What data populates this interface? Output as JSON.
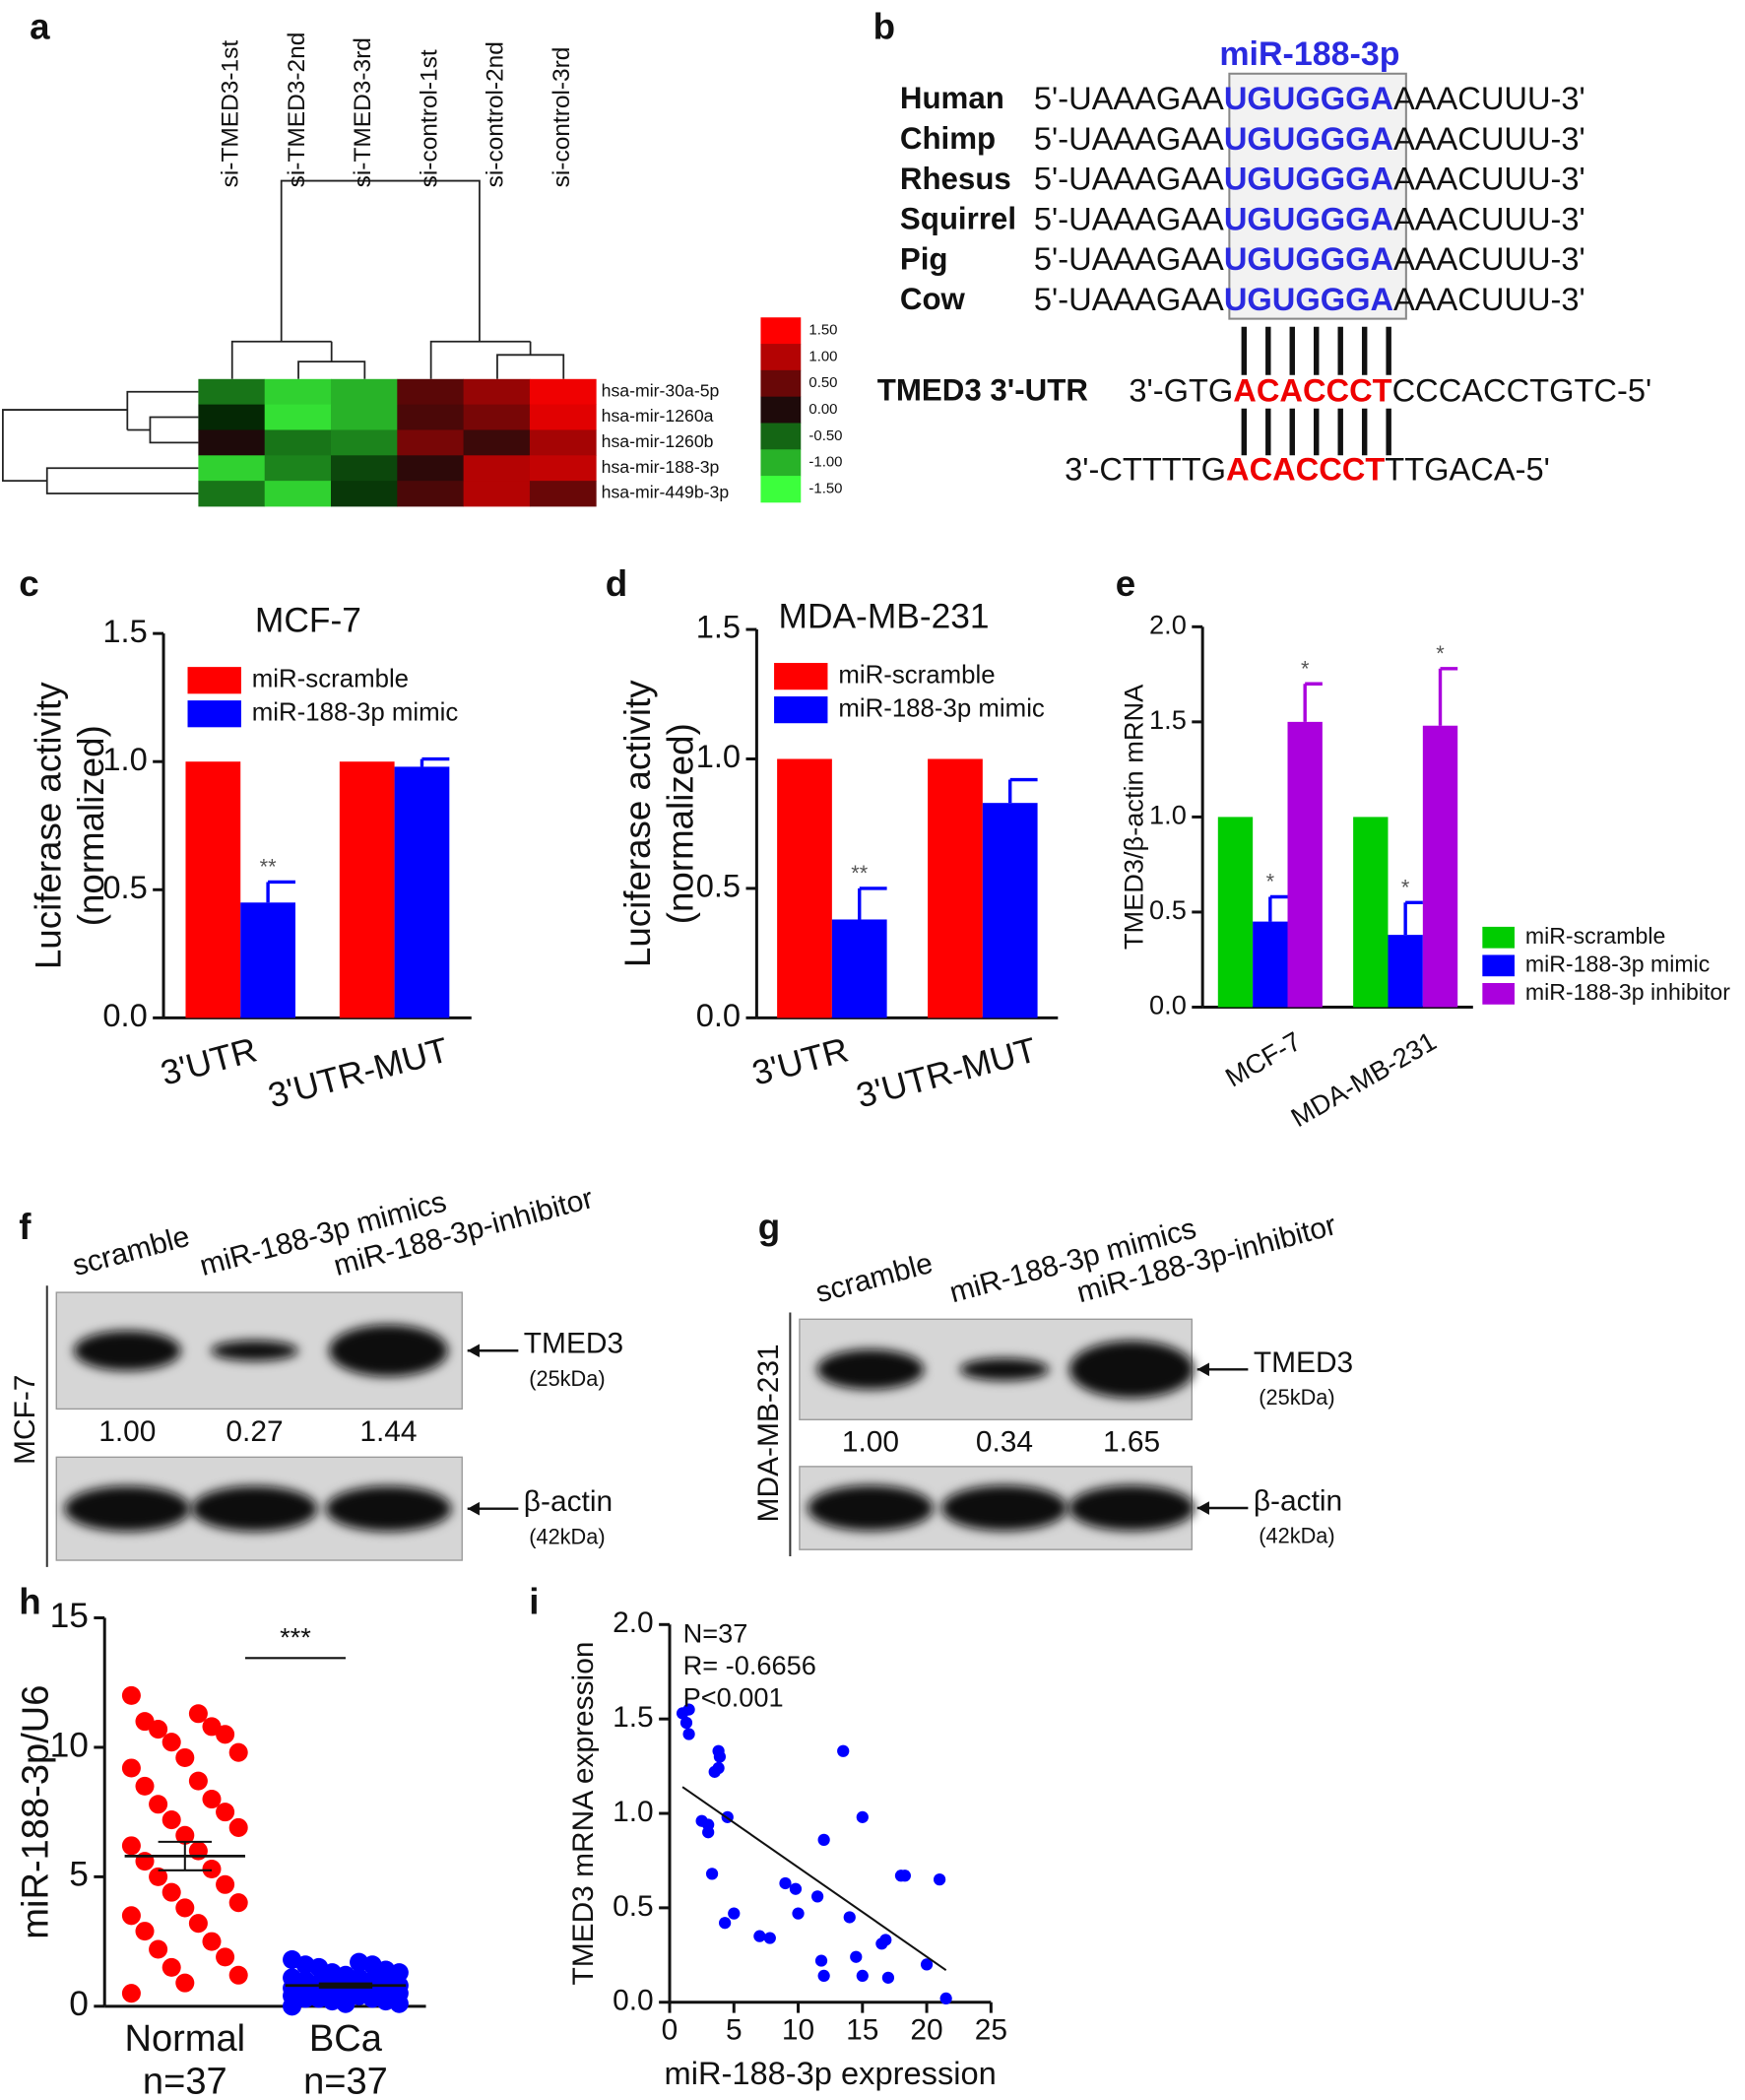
{
  "panel_labels": [
    "a",
    "b",
    "c",
    "d",
    "e",
    "f",
    "g",
    "h",
    "i"
  ],
  "alignment": {
    "mirna": "miR-188-3p",
    "species": [
      {
        "name": "Human",
        "seq": [
          "5'-UAAAGAA",
          "UGUGGGA",
          "AAACUUU-3'"
        ]
      },
      {
        "name": "Chimp",
        "seq": [
          "5'-UAAAGAA",
          "UGUGGGA",
          "AAACUUU-3'"
        ]
      },
      {
        "name": "Rhesus",
        "seq": [
          "5'-UAAAGAA",
          "UGUGGGA",
          "AAACUUU-3'"
        ]
      },
      {
        "name": "Squirrel",
        "seq": [
          "5'-UAAAGAA",
          "UGUGGGA",
          "AAACUUU-3'"
        ]
      },
      {
        "name": "Pig",
        "seq": [
          "5'-UAAAGAA",
          "UGUGGGA",
          "AAACUUU-3'"
        ]
      },
      {
        "name": "Cow",
        "seq": [
          "5'-UAAAGAA",
          "UGUGGGA",
          "AAACUUU-3'"
        ]
      }
    ],
    "targets": [
      {
        "name": "TMED3 3'-UTR",
        "seq": [
          "3'-GTG",
          "ACACCCT",
          "CCCACCTGTC-5'"
        ]
      },
      {
        "seq": [
          "3'-CTTTTG",
          "ACACCCT",
          "TTGACA-5'"
        ]
      }
    ]
  },
  "blots": [
    {
      "cell_line": "MCF-7",
      "lanes": [
        "scramble",
        "miR-188-3p mimics",
        "miR-188-3p-inhibitor"
      ],
      "bands": [
        {
          "name": "TMED3",
          "size": "(25kDa)"
        },
        {
          "name": "β-actin",
          "size": "(42kDa)"
        }
      ],
      "quantification": [
        1.0,
        0.27,
        1.44
      ],
      "quantification_labels": [
        "1.00",
        "0.27",
        "1.44"
      ]
    },
    {
      "cell_line": "MDA-MB-231",
      "lanes": [
        "scramble",
        "miR-188-3p mimics",
        "miR-188-3p-inhibitor"
      ],
      "bands": [
        {
          "name": "TMED3",
          "size": "(25kDa)"
        },
        {
          "name": "β-actin",
          "size": "(42kDa)"
        }
      ],
      "quantification": [
        1.0,
        0.34,
        1.65
      ],
      "quantification_labels": [
        "1.00",
        "0.34",
        "1.65"
      ]
    }
  ],
  "chart_data": [
    {
      "type": "heatmap",
      "columns": [
        "si-TMED3-1st",
        "si-TMED3-2nd",
        "si-TMED3-3rd",
        "si-control-1st",
        "si-control-2nd",
        "si-control-3rd"
      ],
      "rows": [
        "hsa-mir-30a-5p",
        "hsa-mir-1260a",
        "hsa-mir-1260b",
        "hsa-mir-188-3p",
        "hsa-mir-449b-3p"
      ],
      "values": [
        [
          -0.6,
          -1.2,
          -1.0,
          0.4,
          0.8,
          1.4
        ],
        [
          -0.1,
          -1.3,
          -1.0,
          0.3,
          0.6,
          1.3
        ],
        [
          0.0,
          -0.6,
          -0.7,
          0.6,
          0.2,
          0.9
        ],
        [
          -1.2,
          -0.7,
          -0.3,
          0.1,
          1.0,
          1.1
        ],
        [
          -0.6,
          -1.2,
          -0.2,
          0.3,
          1.0,
          0.5
        ]
      ],
      "colorbar_ticks": [
        {
          "value": 1.5,
          "label": "1.50"
        },
        {
          "value": 1.0,
          "label": "1.00"
        },
        {
          "value": 0.5,
          "label": "0.50"
        },
        {
          "value": 0.0,
          "label": "0.00"
        },
        {
          "value": -0.5,
          "label": "-0.50"
        },
        {
          "value": -1.0,
          "label": "-1.00"
        },
        {
          "value": -1.5,
          "label": "-1.50"
        }
      ]
    },
    {
      "type": "bar",
      "title": "MCF-7",
      "ylabel": [
        "Luciferase activity",
        "(normalized)"
      ],
      "categories": [
        "3'UTR",
        "3'UTR-MUT"
      ],
      "series": [
        {
          "name": "miR-scramble",
          "color": "#ff0000",
          "values": [
            1.0,
            1.0
          ]
        },
        {
          "name": "miR-188-3p mimic",
          "color": "#0000ff",
          "values": [
            0.45,
            0.98
          ],
          "errors": [
            0.08,
            0.03
          ],
          "significance": [
            "**",
            null
          ]
        }
      ],
      "ylim": [
        0,
        1.5
      ],
      "yticks": [
        {
          "value": 0,
          "label": "0.0"
        },
        {
          "value": 0.5,
          "label": "0.5"
        },
        {
          "value": 1,
          "label": "1.0"
        },
        {
          "value": 1.5,
          "label": "1.5"
        }
      ]
    },
    {
      "type": "bar",
      "title": "MDA-MB-231",
      "ylabel": [
        "Luciferase activity",
        "(normalized)"
      ],
      "categories": [
        "3'UTR",
        "3'UTR-MUT"
      ],
      "series": [
        {
          "name": "miR-scramble",
          "color": "#ff0000",
          "values": [
            1.0,
            1.0
          ]
        },
        {
          "name": "miR-188-3p mimic",
          "color": "#0000ff",
          "values": [
            0.38,
            0.83
          ],
          "errors": [
            0.12,
            0.09
          ],
          "significance": [
            "**",
            null
          ]
        }
      ],
      "ylim": [
        0,
        1.5
      ],
      "yticks": [
        {
          "value": 0,
          "label": "0.0"
        },
        {
          "value": 0.5,
          "label": "0.5"
        },
        {
          "value": 1,
          "label": "1.0"
        },
        {
          "value": 1.5,
          "label": "1.5"
        }
      ]
    },
    {
      "type": "bar",
      "ylabel": "TMED3/β-actin mRNA",
      "categories": [
        "MCF-7",
        "MDA-MB-231"
      ],
      "series": [
        {
          "name": "miR-scramble",
          "color": "#00cc00",
          "values": [
            1.0,
            1.0
          ]
        },
        {
          "name": "miR-188-3p mimic",
          "color": "#0000ff",
          "values": [
            0.45,
            0.38
          ],
          "errors": [
            0.13,
            0.17
          ],
          "significance": [
            "*",
            "*"
          ]
        },
        {
          "name": "miR-188-3p inhibitor",
          "color": "#aa00dd",
          "values": [
            1.5,
            1.48
          ],
          "errors": [
            0.2,
            0.3
          ],
          "significance": [
            "*",
            "*"
          ]
        }
      ],
      "ylim": [
        0,
        2
      ],
      "yticks": [
        {
          "value": 0,
          "label": "0.0"
        },
        {
          "value": 0.5,
          "label": "0.5"
        },
        {
          "value": 1,
          "label": "1.0"
        },
        {
          "value": 1.5,
          "label": "1.5"
        },
        {
          "value": 2,
          "label": "2.0"
        }
      ]
    },
    {
      "type": "strip",
      "ylabel": "miR-188-3p/U6",
      "categories": [
        "Normal",
        "BCa"
      ],
      "category_sublabels": [
        "n=37",
        "n=37"
      ],
      "colors": [
        "#ff0000",
        "#0000ff"
      ],
      "values": [
        [
          12.0,
          11.3,
          11.0,
          10.8,
          10.7,
          10.5,
          10.2,
          9.8,
          9.6,
          9.2,
          8.7,
          8.5,
          8.0,
          7.8,
          7.5,
          7.2,
          6.9,
          6.6,
          6.2,
          6.0,
          5.6,
          5.3,
          5.0,
          4.7,
          4.4,
          4.0,
          3.8,
          3.5,
          3.2,
          2.9,
          2.5,
          2.2,
          1.9,
          1.5,
          1.2,
          0.9,
          0.5
        ],
        [
          1.8,
          1.7,
          1.6,
          1.6,
          1.5,
          1.4,
          1.3,
          1.3,
          1.2,
          1.1,
          1.1,
          1.0,
          1.0,
          0.9,
          0.9,
          0.8,
          0.8,
          0.8,
          0.7,
          0.7,
          0.7,
          0.6,
          0.6,
          0.6,
          0.5,
          0.5,
          0.5,
          0.4,
          0.4,
          0.3,
          0.3,
          0.3,
          0.2,
          0.2,
          0.1,
          0.1,
          0.0
        ]
      ],
      "means": [
        5.8,
        0.8
      ],
      "sems": [
        0.55,
        0.08
      ],
      "significance": "***",
      "ylim": [
        0,
        15
      ],
      "yticks": [
        0,
        5,
        10,
        15
      ]
    },
    {
      "type": "scatter",
      "xlabel": "miR-188-3p expression",
      "ylabel": "TMED3 mRNA expression",
      "annotations": [
        "N=37",
        "R= -0.6656",
        "P<0.001"
      ],
      "color": "#0000ff",
      "x": [
        1.0,
        1.5,
        1.3,
        1.5,
        3.5,
        3.8,
        3.9,
        3.8,
        2.5,
        3.0,
        4.5,
        3.0,
        3.3,
        4.3,
        5.0,
        7.0,
        7.8,
        9.0,
        10.0,
        11.5,
        12.0,
        11.8,
        12.0,
        13.5,
        14.0,
        14.5,
        15.0,
        15.0,
        16.5,
        16.8,
        17.0,
        18.0,
        18.3,
        20.0,
        21.0,
        21.5,
        9.8
      ],
      "y": [
        1.53,
        1.55,
        1.48,
        1.42,
        1.22,
        1.24,
        1.3,
        1.33,
        0.96,
        0.94,
        0.98,
        0.9,
        0.68,
        0.42,
        0.47,
        0.35,
        0.34,
        0.63,
        0.47,
        0.56,
        0.86,
        0.22,
        0.14,
        1.33,
        0.45,
        0.24,
        0.98,
        0.14,
        0.31,
        0.33,
        0.13,
        0.67,
        0.67,
        0.2,
        0.65,
        0.02,
        0.6
      ],
      "fit": {
        "x": [
          1.0,
          21.5
        ],
        "y": [
          1.14,
          0.17
        ]
      },
      "xlim": [
        0,
        25
      ],
      "xticks": [
        0,
        5,
        10,
        15,
        20,
        25
      ],
      "ylim": [
        0,
        2
      ],
      "yticks": [
        {
          "value": 0,
          "label": "0.0"
        },
        {
          "value": 0.5,
          "label": "0.5"
        },
        {
          "value": 1,
          "label": "1.0"
        },
        {
          "value": 1.5,
          "label": "1.5"
        },
        {
          "value": 2,
          "label": "2.0"
        }
      ]
    }
  ]
}
